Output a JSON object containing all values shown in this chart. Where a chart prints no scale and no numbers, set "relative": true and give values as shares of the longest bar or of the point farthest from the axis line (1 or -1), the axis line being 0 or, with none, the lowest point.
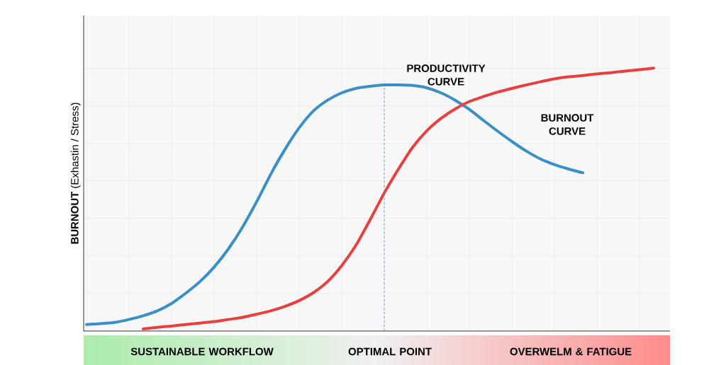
{
  "chart_data": {
    "type": "line",
    "relative": true,
    "grid": true,
    "ylabel": "**BURNOUT** (Exhastin / Stress)",
    "categories": [
      null,
      null,
      null,
      null,
      null,
      null,
      null,
      null,
      null,
      null,
      null,
      null,
      null,
      null,
      null,
      null,
      null,
      null,
      null,
      null,
      null,
      null,
      null,
      null,
      null,
      null,
      null,
      null,
      null,
      null,
      null,
      null,
      null,
      null,
      null,
      null,
      null,
      null,
      null,
      null,
      null
    ],
    "series": [
      {
        "color": "#3a8fc8",
        "values": [
          0.025,
          0.028,
          0.033,
          0.044,
          0.058,
          0.077,
          0.105,
          0.144,
          0.188,
          0.243,
          0.312,
          0.395,
          0.492,
          0.597,
          0.691,
          0.773,
          0.837,
          0.878,
          0.906,
          0.923,
          0.931,
          0.936,
          0.936,
          0.934,
          0.925,
          0.906,
          0.878,
          0.843,
          0.801,
          0.76,
          0.721,
          0.685,
          0.655,
          0.633,
          0.616,
          0.602,
          null,
          null,
          null,
          null,
          null
        ]
      },
      {
        "color": "#e8403f",
        "values": [
          null,
          null,
          null,
          null,
          0.008,
          0.014,
          0.019,
          0.025,
          0.03,
          0.036,
          0.044,
          0.052,
          0.064,
          0.077,
          0.094,
          0.116,
          0.146,
          0.188,
          0.249,
          0.326,
          0.423,
          0.525,
          0.616,
          0.699,
          0.762,
          0.809,
          0.845,
          0.873,
          0.892,
          0.909,
          0.923,
          0.936,
          0.948,
          0.959,
          0.967,
          0.972,
          0.978,
          0.983,
          0.989,
          0.994,
          1
        ]
      }
    ],
    "annotations": [
      "PRODUCTIVITY CURVE",
      "BURNOUT CURVE",
      "SUSTAINABLE WORKFLOW",
      "OPTIMAL POINT",
      "OVERWELM & FATIGUE"
    ]
  }
}
